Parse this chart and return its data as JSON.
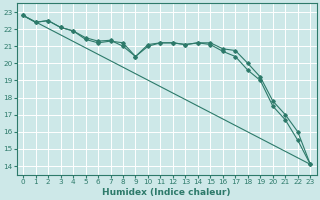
{
  "xlabel": "Humidex (Indice chaleur)",
  "xlim": [
    -0.5,
    23.5
  ],
  "ylim": [
    13.5,
    23.5
  ],
  "bg_color": "#cde8e8",
  "grid_color": "#ffffff",
  "line_color": "#2d7a6a",
  "line1_x": [
    0,
    1,
    2,
    3,
    4,
    5,
    6,
    7,
    8,
    9,
    10,
    11,
    12,
    13,
    14,
    15,
    16,
    17,
    18,
    19,
    20,
    21,
    22,
    23
  ],
  "line1_y": [
    22.8,
    22.4,
    22.5,
    22.1,
    21.9,
    21.5,
    21.3,
    21.35,
    21.0,
    20.4,
    21.1,
    21.2,
    21.2,
    21.1,
    21.2,
    21.2,
    20.85,
    20.75,
    20.0,
    19.2,
    17.8,
    17.0,
    16.0,
    14.1
  ],
  "line2_x": [
    0,
    1,
    2,
    3,
    4,
    5,
    6,
    7,
    8,
    9,
    10,
    11,
    12,
    13,
    14,
    15,
    16,
    17,
    18,
    19,
    20,
    21,
    22,
    23
  ],
  "line2_y": [
    22.8,
    22.4,
    22.5,
    22.1,
    21.9,
    21.4,
    21.2,
    21.3,
    21.2,
    20.4,
    21.0,
    21.2,
    21.2,
    21.1,
    21.2,
    21.1,
    20.7,
    20.4,
    19.6,
    19.0,
    17.5,
    16.7,
    15.5,
    14.1
  ],
  "line3_x": [
    0,
    23
  ],
  "line3_y": [
    22.8,
    14.1
  ],
  "xticks": [
    0,
    1,
    2,
    3,
    4,
    5,
    6,
    7,
    8,
    9,
    10,
    11,
    12,
    13,
    14,
    15,
    16,
    17,
    18,
    19,
    20,
    21,
    22,
    23
  ],
  "yticks": [
    14,
    15,
    16,
    17,
    18,
    19,
    20,
    21,
    22,
    23
  ],
  "xlabel_fontsize": 6.5,
  "tick_fontsize": 5.2
}
